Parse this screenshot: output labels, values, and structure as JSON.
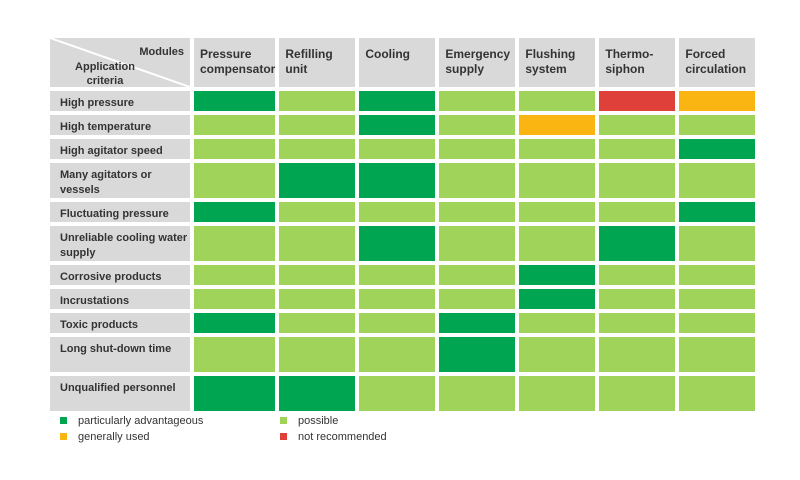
{
  "corner": {
    "modules_label": "Modules",
    "criteria_label": "Application criteria"
  },
  "modules": [
    "Pressure compensator",
    "Refilling unit",
    "Cooling",
    "Emergency supply",
    "Flushing system",
    "Thermo-siphon",
    "Forced circulation"
  ],
  "ratings": {
    "A": {
      "label": "particularly advantageous",
      "color": "#00a551"
    },
    "P": {
      "label": "possible",
      "color": "#9fd35a"
    },
    "G": {
      "label": "generally used",
      "color": "#fbb512"
    },
    "N": {
      "label": "not recommended",
      "color": "#e0403a"
    }
  },
  "criteria": [
    {
      "label": "High pressure",
      "cells": [
        "A",
        "P",
        "A",
        "P",
        "P",
        "N",
        "G"
      ]
    },
    {
      "label": "High temperature",
      "cells": [
        "P",
        "P",
        "A",
        "P",
        "G",
        "P",
        "P"
      ]
    },
    {
      "label": "High agitator speed",
      "cells": [
        "P",
        "P",
        "P",
        "P",
        "P",
        "P",
        "A"
      ]
    },
    {
      "label": "Many agitators or vessels",
      "cells": [
        "P",
        "A",
        "A",
        "P",
        "P",
        "P",
        "P"
      ]
    },
    {
      "label": "Fluctuating pressure",
      "cells": [
        "A",
        "P",
        "P",
        "P",
        "P",
        "P",
        "A"
      ]
    },
    {
      "label": "Unreliable cooling water supply",
      "cells": [
        "P",
        "P",
        "A",
        "P",
        "P",
        "A",
        "P"
      ]
    },
    {
      "label": "Corrosive products",
      "cells": [
        "P",
        "P",
        "P",
        "P",
        "A",
        "P",
        "P"
      ]
    },
    {
      "label": "Incrustations",
      "cells": [
        "P",
        "P",
        "P",
        "P",
        "A",
        "P",
        "P"
      ]
    },
    {
      "label": "Toxic products",
      "cells": [
        "A",
        "P",
        "P",
        "A",
        "P",
        "P",
        "P"
      ]
    },
    {
      "label": "Long shut-down time",
      "cells": [
        "P",
        "P",
        "P",
        "A",
        "P",
        "P",
        "P"
      ]
    },
    {
      "label": "Unqualified personnel",
      "cells": [
        "A",
        "A",
        "P",
        "P",
        "P",
        "P",
        "P"
      ]
    }
  ],
  "legend": [
    "A",
    "G",
    "P",
    "N"
  ]
}
